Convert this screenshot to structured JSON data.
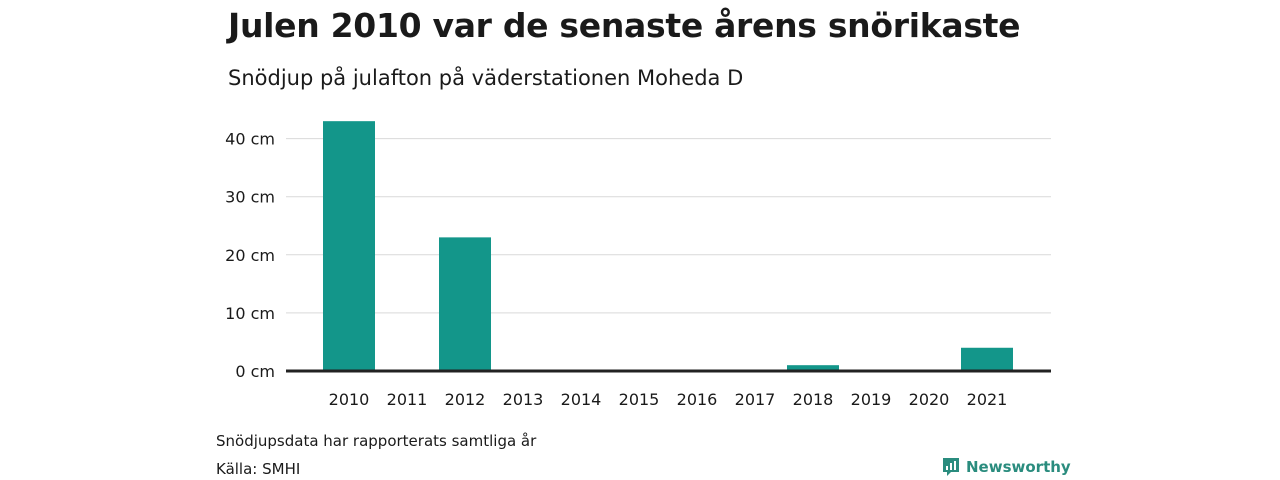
{
  "title": "Julen 2010 var de senaste årens snörikaste",
  "subtitle": "Snödjup på julafton på väderstationen Moheda D",
  "note": "Snödjupsdata har rapporterats samtliga år",
  "source": "Källa: SMHI",
  "brand": "Newsworthy",
  "colors": {
    "bar": "#13968a",
    "grid": "#d9d9d9",
    "baseline": "#222222",
    "brand": "#2a8c7e"
  },
  "chart_data": {
    "type": "bar",
    "categories": [
      "2010",
      "2011",
      "2012",
      "2013",
      "2014",
      "2015",
      "2016",
      "2017",
      "2018",
      "2019",
      "2020",
      "2021"
    ],
    "values": [
      43,
      0,
      23,
      0,
      0,
      0,
      0,
      0,
      1,
      0,
      0,
      4
    ],
    "yticks": [
      "0 cm",
      "10 cm",
      "20 cm",
      "30 cm",
      "40 cm"
    ],
    "ylim": [
      0,
      45
    ],
    "unit": "cm",
    "grid": true
  }
}
